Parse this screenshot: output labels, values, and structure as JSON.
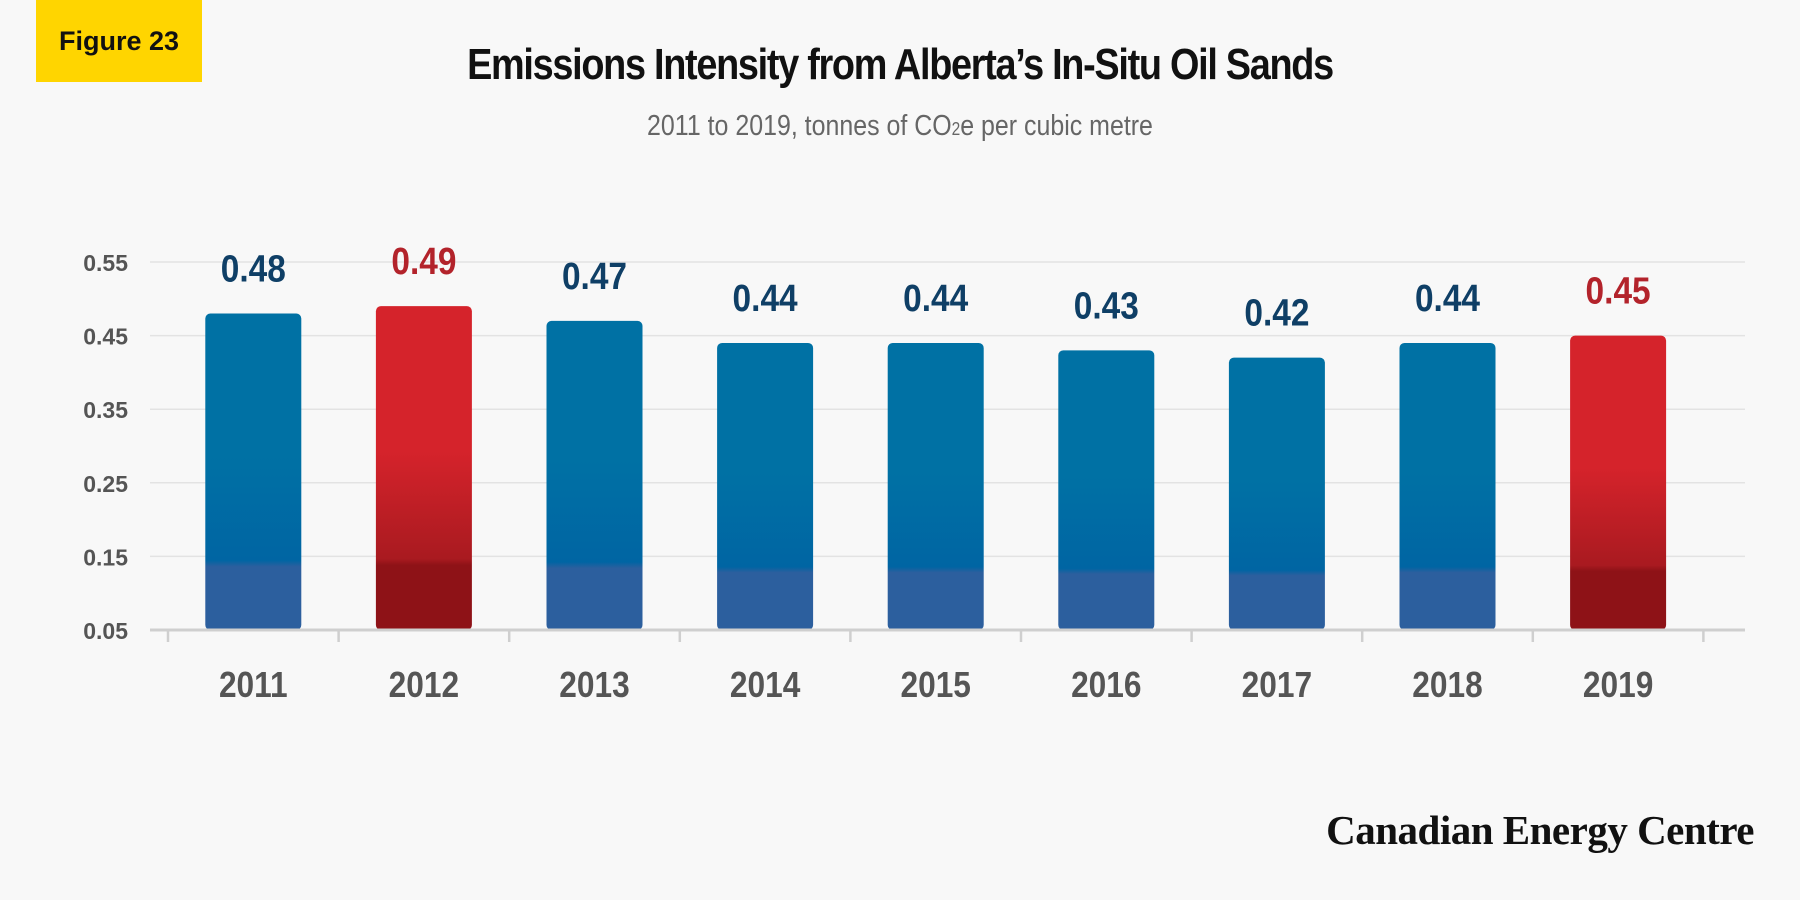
{
  "badge": "Figure 23",
  "title": "Emissions Intensity from Alberta’s In-Situ Oil Sands",
  "subtitle": {
    "before": "2011 to 2019, tonnes of CO",
    "sub": "2",
    "after": "e per cubic metre"
  },
  "brand": "Canadian Energy Centre",
  "colors": {
    "blue_top": "#0071a4",
    "blue_bottom": "#2c5f9e",
    "blue_label": "#0f3f66",
    "red_top": "#d5232b",
    "red_bottom": "#8e1217",
    "red_label": "#b3232b",
    "grid": "#e3e3e3",
    "tick_label": "#555555",
    "axis": "#cfcfcf"
  },
  "chart_data": {
    "type": "bar",
    "categories": [
      "2011",
      "2012",
      "2013",
      "2014",
      "2015",
      "2016",
      "2017",
      "2018",
      "2019"
    ],
    "values": [
      0.48,
      0.49,
      0.47,
      0.44,
      0.44,
      0.43,
      0.42,
      0.44,
      0.45
    ],
    "data_labels": [
      "0.48",
      "0.49",
      "0.47",
      "0.44",
      "0.44",
      "0.43",
      "0.42",
      "0.44",
      "0.45"
    ],
    "highlight": [
      false,
      true,
      false,
      false,
      false,
      false,
      false,
      false,
      true
    ],
    "ylim": [
      0.05,
      0.55
    ],
    "yticks": [
      "0.55",
      "0.45",
      "0.35",
      "0.25",
      "0.15",
      "0.05"
    ],
    "grid": true,
    "xlabel": "",
    "ylabel": ""
  }
}
